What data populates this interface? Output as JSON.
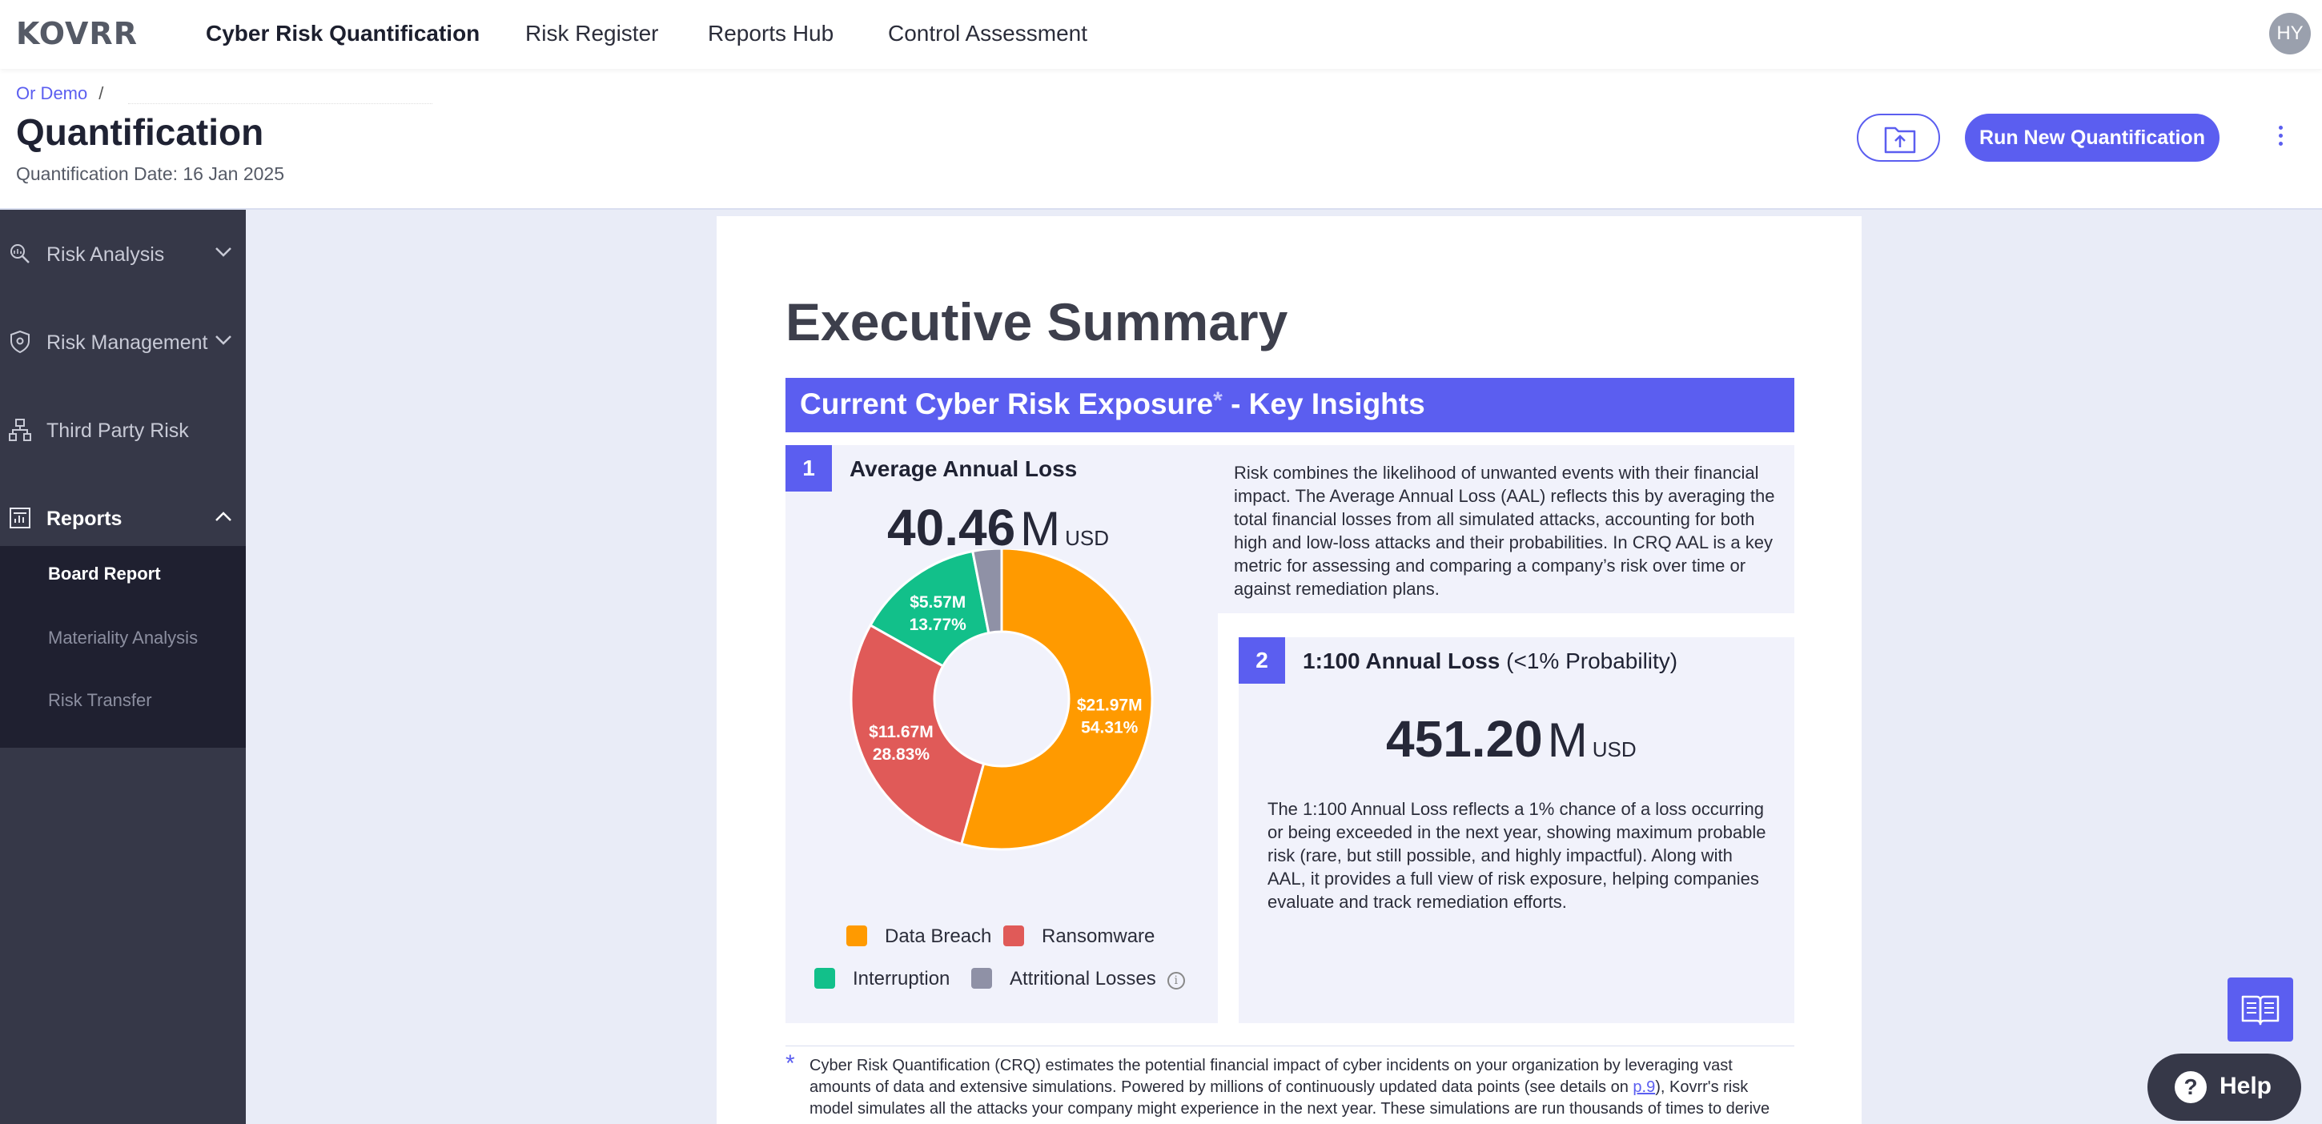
{
  "nav": {
    "logo": "KOVRR",
    "items": [
      "Cyber Risk Quantification",
      "Risk Register",
      "Reports Hub",
      "Control Assessment"
    ],
    "avatar": "HY"
  },
  "header": {
    "breadcrumb": "Or Demo",
    "breadcrumb_sep": "/",
    "title": "Quantification",
    "date": "Quantification Date: 16 Jan 2025",
    "run_button": "Run New Quantification"
  },
  "sidebar": {
    "items": [
      {
        "label": "Risk Analysis",
        "icon": "search-chart-icon"
      },
      {
        "label": "Risk Management",
        "icon": "shield-icon"
      },
      {
        "label": "Third Party Risk",
        "icon": "network-icon"
      },
      {
        "label": "Reports",
        "icon": "report-icon"
      }
    ],
    "subitems": [
      "Board Report",
      "Materiality Analysis",
      "Risk Transfer"
    ]
  },
  "report": {
    "title": "Executive Summary",
    "banner": "Current Cyber Risk Exposure",
    "banner_star": "*",
    "banner_suffix": " - Key Insights",
    "aal": {
      "num": "1",
      "title": "Average Annual Loss",
      "value": "40.46",
      "unit_m": "M",
      "currency": "USD",
      "description": "Risk combines the likelihood of unwanted events with their financial impact. The Average Annual Loss (AAL) reflects this by averaging the total financial losses from all simulated attacks, accounting for both high and low-loss attacks and their probabilities. In CRQ AAL is a key metric for assessing and comparing a company’s risk over time or against remediation plans."
    },
    "loss100": {
      "num": "2",
      "title": "1:100 Annual Loss",
      "title_light": " (<1% Probability)",
      "value": "451.20",
      "unit_m": "M",
      "currency": "USD",
      "description": "The 1:100 Annual Loss reflects a 1% chance of a loss occurring or being exceeded in the next year, showing maximum probable risk (rare, but still possible, and highly impactful). Along with AAL, it provides a full view of risk exposure, helping companies evaluate and track remediation efforts."
    },
    "footnote_star": "*",
    "footnote_a": "Cyber Risk Quantification (CRQ) estimates the potential financial impact of cyber incidents on your organization by leveraging vast amounts of data and extensive simulations. Powered by millions of continuously updated data points (see details on ",
    "footnote_link": "p.9",
    "footnote_b": "), Kovrr's risk model simulates all the attacks your company might experience in the next year. These simulations are run thousands of times to derive"
  },
  "chart_data": {
    "type": "pie",
    "donut": true,
    "series": [
      {
        "name": "Data Breach",
        "value": 21.97,
        "percent": 54.31,
        "label": "$21.97M",
        "pct_label": "54.31%",
        "color": "#ff9a00"
      },
      {
        "name": "Ransomware",
        "value": 11.67,
        "percent": 28.83,
        "label": "$11.67M",
        "pct_label": "28.83%",
        "color": "#e05a58"
      },
      {
        "name": "Interruption",
        "value": 5.57,
        "percent": 13.77,
        "label": "$5.57M",
        "pct_label": "13.77%",
        "color": "#12c08a"
      },
      {
        "name": "Attritional Losses",
        "value": 1.25,
        "percent": 3.09,
        "label": "",
        "pct_label": "",
        "color": "#8f91a6"
      }
    ]
  },
  "help": {
    "label": "Help",
    "icon": "question-icon"
  },
  "book": {
    "icon": "book-icon"
  }
}
